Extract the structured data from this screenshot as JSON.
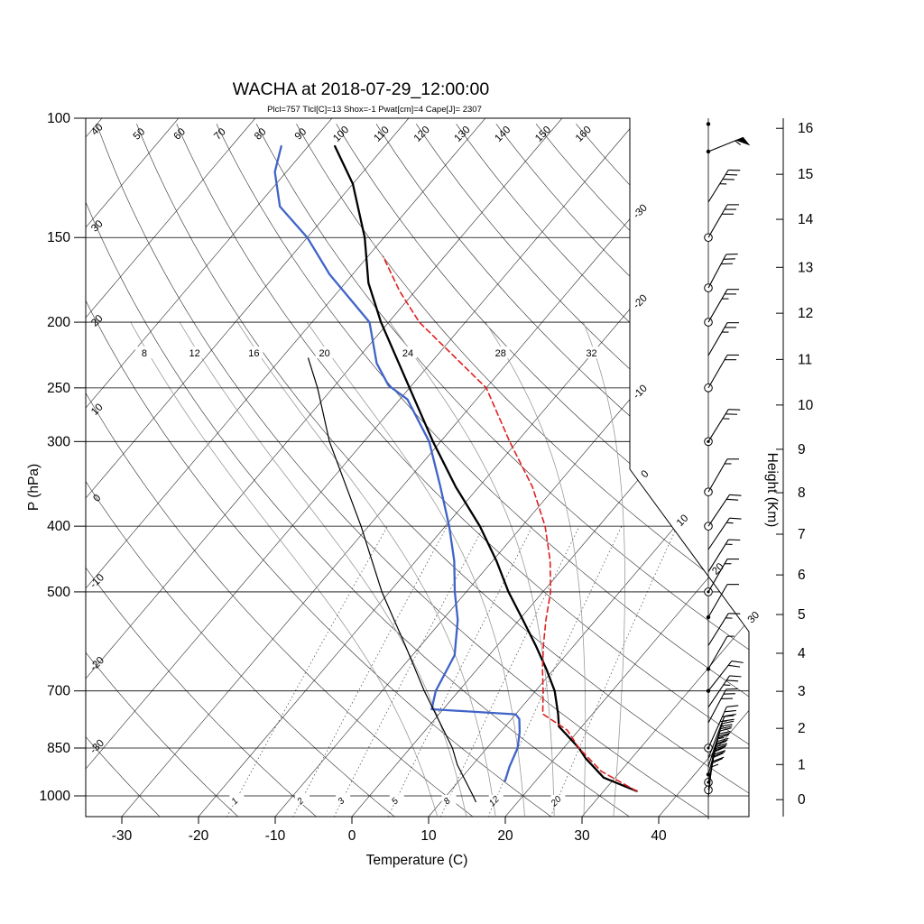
{
  "title": "WACHA at 2018-07-29_12:00:00",
  "subtitle": "Plcl=757 Tlcl[C]=13 Shox=-1 Pwat[cm]=4 Cape[J]= 2307",
  "colors": {
    "subtitle": "#c5500a",
    "temperature": "#000000",
    "dewpoint": "#3f63c8",
    "parcel": "#e02020",
    "reference": "#000000",
    "grid_dark": "#2b2b2b",
    "moist_adiabat": "#9a9a9a",
    "mixing_ratio": "#555555"
  },
  "axes": {
    "pressure": {
      "label": "P (hPa)",
      "ticks": [
        100,
        150,
        200,
        250,
        300,
        400,
        500,
        700,
        850,
        1000
      ]
    },
    "temperature": {
      "label": "Temperature (C)",
      "ticks": [
        -30,
        -20,
        -10,
        0,
        10,
        20,
        30,
        40
      ]
    },
    "height": {
      "label": "Height (Km)",
      "ticks": [
        0,
        1,
        2,
        3,
        4,
        5,
        6,
        7,
        8,
        9,
        10,
        11,
        12,
        13,
        14,
        15,
        16
      ]
    }
  },
  "background_labels": {
    "dry_adiabats_top": [
      50,
      60,
      70,
      80,
      90,
      100,
      110,
      120,
      130,
      140,
      150,
      160
    ],
    "dry_adiabats_left": [
      40,
      30,
      20,
      10,
      0,
      -10,
      -20,
      -30
    ],
    "isotherms_diagonal": [
      "-30",
      "-20",
      "-10",
      "0",
      "10",
      "20",
      "30"
    ],
    "moist_adiabats": [
      8,
      12,
      16,
      20,
      24,
      28,
      32
    ],
    "mixing_ratio": [
      1,
      2,
      3,
      5,
      8,
      12,
      20
    ]
  },
  "chart_data": {
    "type": "skewt-log-p",
    "station": "WACHA",
    "datetime": "2018-07-29_12:00:00",
    "indices": {
      "Plcl": 757,
      "Tlcl_C": 13,
      "Shox": -1,
      "Pwat_cm": 4,
      "Cape_J": 2307
    },
    "pressure_range_hPa": [
      100,
      1050
    ],
    "temperature_range_C": [
      -35,
      45
    ],
    "isotherm_step_C": 10,
    "dry_adiabat_range_C": [
      -30,
      160
    ],
    "series": [
      {
        "name": "temperature",
        "style": "solid",
        "width": 2.3,
        "color_key": "temperature",
        "points": [
          [
            984,
            34.3
          ],
          [
            940,
            28.5
          ],
          [
            880,
            24
          ],
          [
            850,
            22
          ],
          [
            790,
            17
          ],
          [
            757,
            15.5
          ],
          [
            700,
            12.5
          ],
          [
            650,
            9
          ],
          [
            600,
            5
          ],
          [
            550,
            0.5
          ],
          [
            500,
            -4.5
          ],
          [
            450,
            -9.5
          ],
          [
            400,
            -15.5
          ],
          [
            350,
            -23
          ],
          [
            300,
            -31
          ],
          [
            250,
            -40
          ],
          [
            200,
            -51
          ],
          [
            175,
            -57
          ],
          [
            150,
            -62.5
          ],
          [
            125,
            -70
          ],
          [
            110,
            -76.5
          ]
        ]
      },
      {
        "name": "dewpoint",
        "style": "solid",
        "width": 2.3,
        "color_key": "dewpoint",
        "points": [
          [
            950,
            16
          ],
          [
            905,
            15
          ],
          [
            850,
            14
          ],
          [
            805,
            12.5
          ],
          [
            770,
            11
          ],
          [
            758,
            10
          ],
          [
            745,
            -1.5
          ],
          [
            700,
            -3
          ],
          [
            620,
            -4.5
          ],
          [
            550,
            -8
          ],
          [
            500,
            -11.5
          ],
          [
            450,
            -15
          ],
          [
            400,
            -19.5
          ],
          [
            350,
            -25
          ],
          [
            300,
            -31.5
          ],
          [
            260,
            -39
          ],
          [
            248,
            -43
          ],
          [
            230,
            -47
          ],
          [
            200,
            -52.5
          ],
          [
            170,
            -63
          ],
          [
            150,
            -70
          ],
          [
            135,
            -77
          ],
          [
            120,
            -81.5
          ],
          [
            110,
            -83.5
          ]
        ]
      },
      {
        "name": "parcel",
        "style": "dashed",
        "width": 1.6,
        "color_key": "parcel",
        "points": [
          [
            984,
            34.3
          ],
          [
            920,
            27.5
          ],
          [
            850,
            22
          ],
          [
            800,
            18.5
          ],
          [
            757,
            13.5
          ],
          [
            700,
            11
          ],
          [
            650,
            8.5
          ],
          [
            600,
            6
          ],
          [
            550,
            3.5
          ],
          [
            500,
            1
          ],
          [
            450,
            -2.5
          ],
          [
            400,
            -7
          ],
          [
            350,
            -13
          ],
          [
            300,
            -21
          ],
          [
            250,
            -30
          ],
          [
            200,
            -46
          ],
          [
            180,
            -52
          ],
          [
            160,
            -58
          ]
        ]
      },
      {
        "name": "reference",
        "style": "solid",
        "width": 1.2,
        "color_key": "reference",
        "points": [
          [
            1020,
            14.5
          ],
          [
            1000,
            13.5
          ],
          [
            900,
            8
          ],
          [
            850,
            5.5
          ],
          [
            700,
            -4.5
          ],
          [
            600,
            -12
          ],
          [
            500,
            -21
          ],
          [
            400,
            -31
          ],
          [
            300,
            -44.5
          ],
          [
            250,
            -52
          ],
          [
            226,
            -56.5
          ]
        ]
      }
    ],
    "wind_barbs": [
      {
        "p": 102,
        "marker": "dot",
        "angle": 0,
        "flags": 0,
        "fulls": 0,
        "halves": 0
      },
      {
        "p": 112,
        "marker": "dot",
        "angle": 68,
        "flags": 1,
        "fulls": 0,
        "halves": 1
      },
      {
        "p": 133,
        "marker": "none",
        "angle": 32,
        "flags": 0,
        "fulls": 3,
        "halves": 1
      },
      {
        "p": 150,
        "marker": "circle",
        "angle": 30,
        "flags": 0,
        "fulls": 3,
        "halves": 0
      },
      {
        "p": 178,
        "marker": "circle",
        "angle": 28,
        "flags": 0,
        "fulls": 3,
        "halves": 0
      },
      {
        "p": 200,
        "marker": "circle",
        "angle": 30,
        "flags": 0,
        "fulls": 2,
        "halves": 1
      },
      {
        "p": 224,
        "marker": "none",
        "angle": 30,
        "flags": 0,
        "fulls": 2,
        "halves": 1
      },
      {
        "p": 250,
        "marker": "circle",
        "angle": 30,
        "flags": 0,
        "fulls": 2,
        "halves": 0
      },
      {
        "p": 300,
        "marker": "circle-dot",
        "angle": 32,
        "flags": 0,
        "fulls": 2,
        "halves": 1
      },
      {
        "p": 356,
        "marker": "circle",
        "angle": 30,
        "flags": 0,
        "fulls": 1,
        "halves": 1
      },
      {
        "p": 400,
        "marker": "circle",
        "angle": 34,
        "flags": 0,
        "fulls": 2,
        "halves": 0
      },
      {
        "p": 433,
        "marker": "none",
        "angle": 34,
        "flags": 0,
        "fulls": 1,
        "halves": 1
      },
      {
        "p": 467,
        "marker": "none",
        "angle": 32,
        "flags": 0,
        "fulls": 1,
        "halves": 1
      },
      {
        "p": 500,
        "marker": "circle-dot",
        "angle": 30,
        "flags": 0,
        "fulls": 1,
        "halves": 1
      },
      {
        "p": 545,
        "marker": "dot",
        "angle": 30,
        "flags": 0,
        "fulls": 1,
        "halves": 0
      },
      {
        "p": 600,
        "marker": "none",
        "angle": 32,
        "flags": 0,
        "fulls": 1,
        "halves": 1
      },
      {
        "p": 650,
        "marker": "dot",
        "angle": 30,
        "flags": 0,
        "fulls": 0,
        "halves": 1
      },
      {
        "p": 700,
        "marker": "dot",
        "angle": 38,
        "flags": 0,
        "fulls": 2,
        "halves": 0
      },
      {
        "p": 740,
        "marker": "none",
        "angle": 34,
        "flags": 0,
        "fulls": 2,
        "halves": 1
      },
      {
        "p": 780,
        "marker": "none",
        "angle": 28,
        "flags": 0,
        "fulls": 3,
        "halves": 0
      },
      {
        "p": 850,
        "marker": "circle-dot",
        "angle": 24,
        "flags": 0,
        "fulls": 3,
        "halves": 1
      },
      {
        "p": 880,
        "marker": "none",
        "angle": 21,
        "flags": 0,
        "fulls": 3,
        "halves": 0
      },
      {
        "p": 905,
        "marker": "none",
        "angle": 18,
        "flags": 0,
        "fulls": 3,
        "halves": 1
      },
      {
        "p": 930,
        "marker": "dot",
        "angle": 15,
        "flags": 0,
        "fulls": 4,
        "halves": 0
      },
      {
        "p": 955,
        "marker": "circle-dot",
        "angle": 12,
        "flags": 0,
        "fulls": 4,
        "halves": 0
      },
      {
        "p": 980,
        "marker": "circle",
        "angle": 9,
        "flags": 0,
        "fulls": 4,
        "halves": 1
      },
      {
        "p": 1005,
        "marker": "none",
        "angle": 6,
        "flags": 0,
        "fulls": 3,
        "halves": 0
      }
    ]
  }
}
